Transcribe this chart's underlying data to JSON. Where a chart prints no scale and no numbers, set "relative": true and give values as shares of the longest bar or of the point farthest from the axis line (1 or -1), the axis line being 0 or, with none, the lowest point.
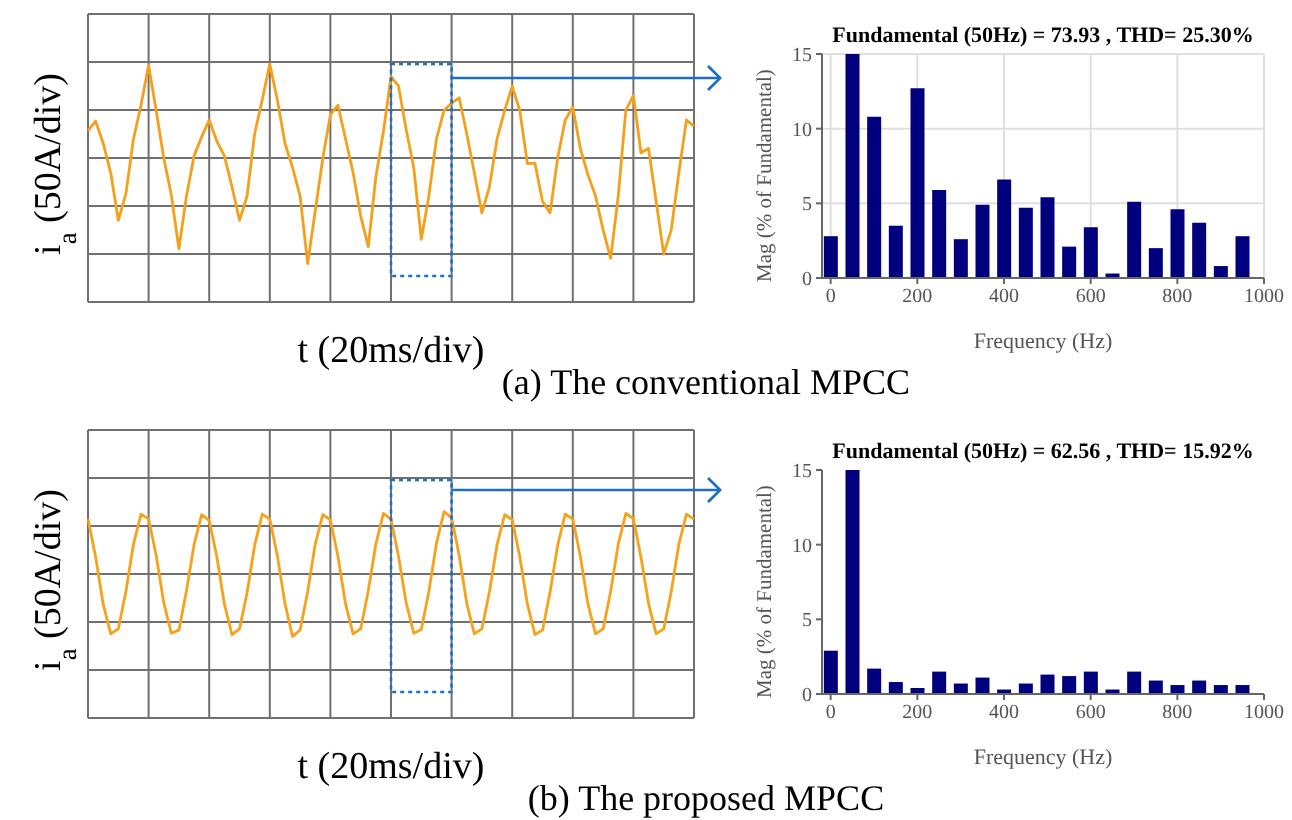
{
  "chart_data": [
    {
      "type": "line",
      "xlabel": "t (20ms/div)",
      "ylabel": "i$_{a}$ (50A/div)",
      "relative": true,
      "grid": true,
      "annotations": [
        "(a) The conventional MPCC"
      ],
      "categories": [
        null,
        null,
        null,
        null,
        null,
        null,
        null,
        null,
        null,
        null,
        null,
        null,
        null,
        null,
        null,
        null,
        null,
        null,
        null,
        null,
        null,
        null,
        null,
        null,
        null,
        null,
        null,
        null,
        null,
        null,
        null,
        null,
        null,
        null,
        null,
        null,
        null,
        null,
        null,
        null,
        null,
        null,
        null,
        null,
        null,
        null,
        null,
        null,
        null,
        null,
        null,
        null,
        null,
        null,
        null,
        null,
        null,
        null,
        null,
        null,
        null,
        null,
        null,
        null,
        null,
        null,
        null,
        null,
        null,
        null,
        null,
        null,
        null,
        null,
        null,
        null,
        null,
        null,
        null,
        null,
        null
      ],
      "series": [
        {
          "color": "#f5a01a",
          "values": [
            0.26,
            0.35,
            0.14,
            -0.14,
            -0.59,
            -0.34,
            0.18,
            0.5,
            0.88,
            0.45,
            0,
            -0.35,
            -0.86,
            -0.36,
            0.02,
            0.2,
            0.36,
            0.16,
            0.02,
            -0.27,
            -0.59,
            -0.36,
            0.23,
            0.55,
            0.89,
            0.55,
            0.14,
            -0.09,
            -0.36,
            -1,
            -0.5,
            0,
            0.41,
            0.5,
            0.18,
            -0.14,
            -0.55,
            -0.84,
            -0.18,
            0.25,
            0.77,
            0.68,
            0.27,
            -0.09,
            -0.77,
            -0.36,
            0.18,
            0.45,
            0.52,
            0.57,
            0.23,
            -0.14,
            -0.52,
            -0.27,
            0.18,
            0.45,
            0.68,
            0.45,
            -0.05,
            -0.05,
            -0.41,
            -0.52,
            0,
            0.36,
            0.48,
            0.09,
            -0.16,
            -0.36,
            -0.68,
            -0.95,
            -0.36,
            0.45,
            0.59,
            0.05,
            0.09,
            -0.41,
            -0.91,
            -0.68,
            -0.14,
            0.36,
            0.3
          ]
        }
      ]
    },
    {
      "type": "bar",
      "title": "Fundamental (50Hz) = 73.93 , THD= 25.30%",
      "xlabel": "Frequency (Hz)",
      "ylabel": "Mag (% of Fundamental)",
      "x": [
        0,
        50,
        100,
        150,
        200,
        250,
        300,
        350,
        400,
        450,
        500,
        550,
        600,
        650,
        700,
        750,
        800,
        850,
        900,
        950
      ],
      "values": [
        2.8,
        15,
        10.8,
        3.5,
        12.7,
        5.9,
        2.6,
        4.9,
        6.6,
        4.7,
        5.4,
        2.1,
        3.4,
        0.3,
        5.1,
        2.0,
        4.6,
        3.7,
        0.8,
        2.8
      ],
      "color": "#00007f",
      "xlim": [
        -20,
        1000
      ],
      "xticks": [
        0,
        200,
        400,
        600,
        800,
        1000
      ],
      "ylim": [
        0,
        15
      ],
      "yticks": [
        0,
        5,
        10,
        15
      ],
      "grid": true
    },
    {
      "type": "line",
      "xlabel": "t (20ms/div)",
      "ylabel": "i$_{a}$ (50A/div)",
      "relative": true,
      "grid": true,
      "annotations": [
        "(b) The proposed MPCC"
      ],
      "categories": [
        null,
        null,
        null,
        null,
        null,
        null,
        null,
        null,
        null,
        null,
        null,
        null,
        null,
        null,
        null,
        null,
        null,
        null,
        null,
        null,
        null,
        null,
        null,
        null,
        null,
        null,
        null,
        null,
        null,
        null,
        null,
        null,
        null,
        null,
        null,
        null,
        null,
        null,
        null,
        null,
        null,
        null,
        null,
        null,
        null,
        null,
        null,
        null,
        null,
        null,
        null,
        null,
        null,
        null,
        null,
        null,
        null,
        null,
        null,
        null,
        null,
        null,
        null,
        null,
        null,
        null,
        null,
        null,
        null,
        null,
        null,
        null,
        null,
        null,
        null,
        null,
        null,
        null,
        null,
        null,
        null
      ],
      "series": [
        {
          "color": "#f7a21b",
          "values": [
            0.88,
            0.28,
            -0.48,
            -0.96,
            -0.88,
            -0.28,
            0.48,
            0.96,
            0.88,
            0.3,
            -0.46,
            -0.95,
            -0.9,
            -0.27,
            0.47,
            0.95,
            0.86,
            0.28,
            -0.48,
            -0.97,
            -0.88,
            -0.3,
            0.46,
            0.96,
            0.88,
            0.29,
            -0.47,
            -1,
            -0.9,
            -0.28,
            0.48,
            0.95,
            0.87,
            0.28,
            -0.48,
            -0.96,
            -0.88,
            -0.27,
            0.48,
            0.97,
            0.88,
            0.28,
            -0.46,
            -0.95,
            -0.89,
            -0.28,
            0.49,
            1,
            0.9,
            0.3,
            -0.47,
            -0.96,
            -0.88,
            -0.28,
            0.47,
            0.95,
            0.87,
            0.28,
            -0.48,
            -0.97,
            -0.9,
            -0.29,
            0.46,
            0.96,
            0.88,
            0.28,
            -0.48,
            -0.96,
            -0.88,
            -0.28,
            0.48,
            0.97,
            0.89,
            0.27,
            -0.47,
            -0.96,
            -0.88,
            -0.28,
            0.48,
            0.96,
            0.88
          ]
        }
      ]
    },
    {
      "type": "bar",
      "title": "Fundamental (50Hz) = 62.56 , THD= 15.92%",
      "xlabel": "Frequency (Hz)",
      "ylabel": "Mag (% of Fundamental)",
      "x": [
        0,
        50,
        100,
        150,
        200,
        250,
        300,
        350,
        400,
        450,
        500,
        550,
        600,
        650,
        700,
        750,
        800,
        850,
        900,
        950
      ],
      "values": [
        2.9,
        15,
        1.7,
        0.8,
        0.4,
        1.5,
        0.7,
        1.1,
        0.3,
        0.7,
        1.3,
        1.2,
        1.5,
        0.3,
        1.5,
        0.9,
        0.6,
        0.9,
        0.6,
        0.6
      ],
      "color": "#00007f",
      "xlim": [
        -20,
        1000
      ],
      "xticks": [
        0,
        200,
        400,
        600,
        800,
        1000
      ],
      "ylim": [
        0,
        15
      ],
      "yticks": [
        0,
        5,
        10,
        15
      ]
    }
  ]
}
